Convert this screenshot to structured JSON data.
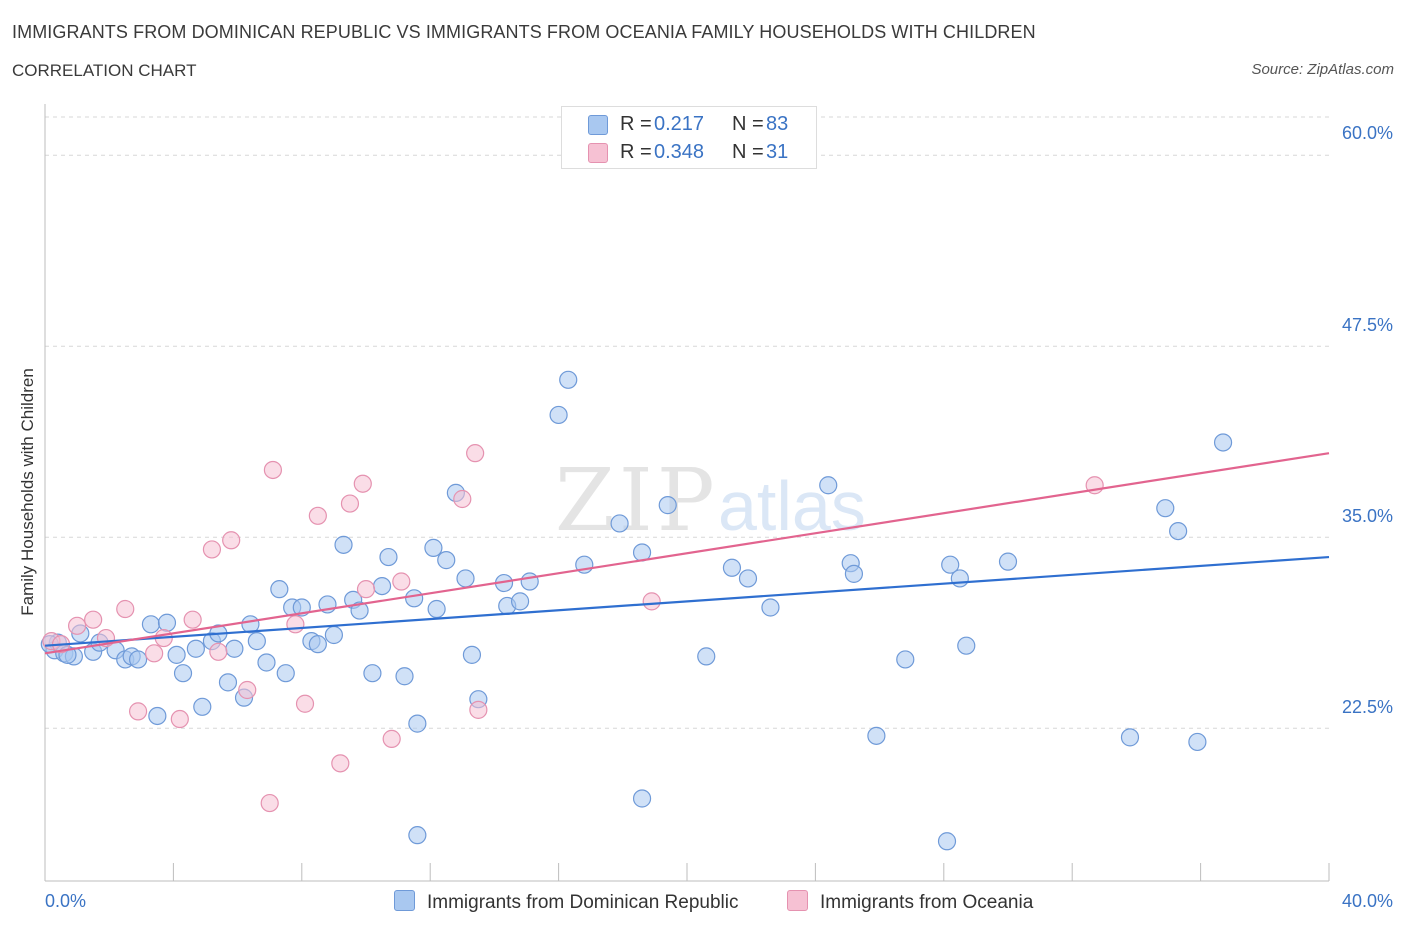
{
  "header": {
    "title": "IMMIGRANTS FROM DOMINICAN REPUBLIC VS IMMIGRANTS FROM OCEANIA FAMILY HOUSEHOLDS WITH CHILDREN",
    "subtitle": "CORRELATION CHART",
    "source": "Source: ZipAtlas.com"
  },
  "legend_top": {
    "rows": [
      {
        "r_label": "R =",
        "r_value": "0.217",
        "n_label": "N =",
        "n_value": "83"
      },
      {
        "r_label": "R =",
        "r_value": "0.348",
        "n_label": "N =",
        "n_value": "31"
      }
    ]
  },
  "legend_bottom": {
    "items": [
      {
        "label": "Immigrants from Dominican Republic"
      },
      {
        "label": "Immigrants from Oceania"
      }
    ]
  },
  "axes": {
    "ylabel": "Family Households with Children",
    "x_min_label": "0.0%",
    "x_max_label": "40.0%",
    "y_tick_labels": [
      "60.0%",
      "47.5%",
      "35.0%",
      "22.5%"
    ]
  },
  "colors": {
    "blue_fill": "#a9c8f0",
    "blue_stroke": "#6f9ad8",
    "blue_line": "#2f6fd0",
    "pink_fill": "#f6c1d3",
    "pink_stroke": "#e592b0",
    "pink_line": "#e2648f",
    "tick_text": "#3a73c4",
    "grid": "#d7d7d7"
  },
  "chart_data": {
    "type": "scatter",
    "xlabel": "",
    "ylabel": "Family Households with Children",
    "xlim": [
      0,
      40
    ],
    "ylim": [
      12.5,
      62.5
    ],
    "y_ticks": [
      22.5,
      35.0,
      47.5,
      60.0
    ],
    "grid": "dashed-horizontal",
    "legend": "top-center",
    "series": [
      {
        "name": "Immigrants from Dominican Republic",
        "color": "#a9c8f0",
        "trend": {
          "x": [
            0,
            40
          ],
          "y": [
            27.9,
            33.7
          ]
        },
        "points": [
          [
            0.3,
            27.6
          ],
          [
            0.4,
            28.1
          ],
          [
            0.6,
            27.4
          ],
          [
            0.9,
            27.2
          ],
          [
            1.1,
            28.7
          ],
          [
            1.5,
            27.5
          ],
          [
            1.7,
            28.1
          ],
          [
            2.2,
            27.6
          ],
          [
            2.5,
            27.0
          ],
          [
            2.7,
            27.2
          ],
          [
            2.9,
            27.0
          ],
          [
            3.3,
            29.3
          ],
          [
            3.5,
            23.3
          ],
          [
            3.8,
            29.4
          ],
          [
            4.1,
            27.3
          ],
          [
            4.3,
            26.1
          ],
          [
            4.7,
            27.7
          ],
          [
            4.9,
            23.9
          ],
          [
            5.2,
            28.2
          ],
          [
            5.4,
            28.7
          ],
          [
            5.7,
            25.5
          ],
          [
            5.9,
            27.7
          ],
          [
            6.2,
            24.5
          ],
          [
            6.4,
            29.3
          ],
          [
            6.6,
            28.2
          ],
          [
            6.9,
            26.8
          ],
          [
            7.3,
            31.6
          ],
          [
            7.5,
            26.1
          ],
          [
            7.7,
            30.4
          ],
          [
            8.0,
            30.4
          ],
          [
            8.3,
            28.2
          ],
          [
            8.5,
            28.0
          ],
          [
            8.8,
            30.6
          ],
          [
            9.0,
            28.6
          ],
          [
            9.3,
            34.5
          ],
          [
            9.6,
            30.9
          ],
          [
            9.8,
            30.2
          ],
          [
            10.2,
            26.1
          ],
          [
            10.5,
            31.8
          ],
          [
            10.7,
            33.7
          ],
          [
            11.2,
            25.9
          ],
          [
            11.5,
            31.0
          ],
          [
            11.6,
            22.8
          ],
          [
            11.6,
            15.5
          ],
          [
            12.1,
            34.3
          ],
          [
            12.2,
            30.3
          ],
          [
            12.5,
            33.5
          ],
          [
            12.8,
            37.9
          ],
          [
            13.1,
            32.3
          ],
          [
            13.3,
            27.3
          ],
          [
            13.5,
            24.4
          ],
          [
            14.3,
            32.0
          ],
          [
            14.4,
            30.5
          ],
          [
            14.8,
            30.8
          ],
          [
            15.1,
            32.1
          ],
          [
            16.0,
            43.0
          ],
          [
            16.3,
            45.3
          ],
          [
            16.8,
            33.2
          ],
          [
            17.9,
            35.9
          ],
          [
            18.6,
            17.9
          ],
          [
            18.6,
            34.0
          ],
          [
            19.4,
            37.1
          ],
          [
            20.6,
            27.2
          ],
          [
            21.4,
            33.0
          ],
          [
            21.9,
            32.3
          ],
          [
            22.6,
            30.4
          ],
          [
            24.4,
            38.4
          ],
          [
            25.1,
            33.3
          ],
          [
            25.2,
            32.6
          ],
          [
            25.9,
            22.0
          ],
          [
            26.8,
            27.0
          ],
          [
            28.1,
            15.1
          ],
          [
            28.2,
            33.2
          ],
          [
            28.5,
            32.3
          ],
          [
            28.7,
            27.9
          ],
          [
            30.0,
            33.4
          ],
          [
            33.8,
            21.9
          ],
          [
            34.9,
            36.9
          ],
          [
            35.3,
            35.4
          ],
          [
            35.9,
            21.6
          ],
          [
            36.7,
            41.2
          ],
          [
            0.15,
            28.0
          ],
          [
            0.7,
            27.3
          ]
        ]
      },
      {
        "name": "Immigrants from Oceania",
        "color": "#f6c1d3",
        "trend": {
          "x": [
            0,
            40
          ],
          "y": [
            27.4,
            40.5
          ]
        },
        "points": [
          [
            0.2,
            28.2
          ],
          [
            0.5,
            28.0
          ],
          [
            1.0,
            29.2
          ],
          [
            1.5,
            29.6
          ],
          [
            1.9,
            28.4
          ],
          [
            2.5,
            30.3
          ],
          [
            2.9,
            23.6
          ],
          [
            3.4,
            27.4
          ],
          [
            3.7,
            28.4
          ],
          [
            4.2,
            23.1
          ],
          [
            4.6,
            29.6
          ],
          [
            5.2,
            34.2
          ],
          [
            5.4,
            27.5
          ],
          [
            5.8,
            34.8
          ],
          [
            6.3,
            25.0
          ],
          [
            7.1,
            39.4
          ],
          [
            7.0,
            17.6
          ],
          [
            7.8,
            29.3
          ],
          [
            8.1,
            24.1
          ],
          [
            8.5,
            36.4
          ],
          [
            9.2,
            20.2
          ],
          [
            9.5,
            37.2
          ],
          [
            9.9,
            38.5
          ],
          [
            10.0,
            31.6
          ],
          [
            10.8,
            21.8
          ],
          [
            11.1,
            32.1
          ],
          [
            13.0,
            37.5
          ],
          [
            13.4,
            40.5
          ],
          [
            13.5,
            23.7
          ],
          [
            18.9,
            30.8
          ],
          [
            32.7,
            38.4
          ]
        ]
      }
    ]
  }
}
